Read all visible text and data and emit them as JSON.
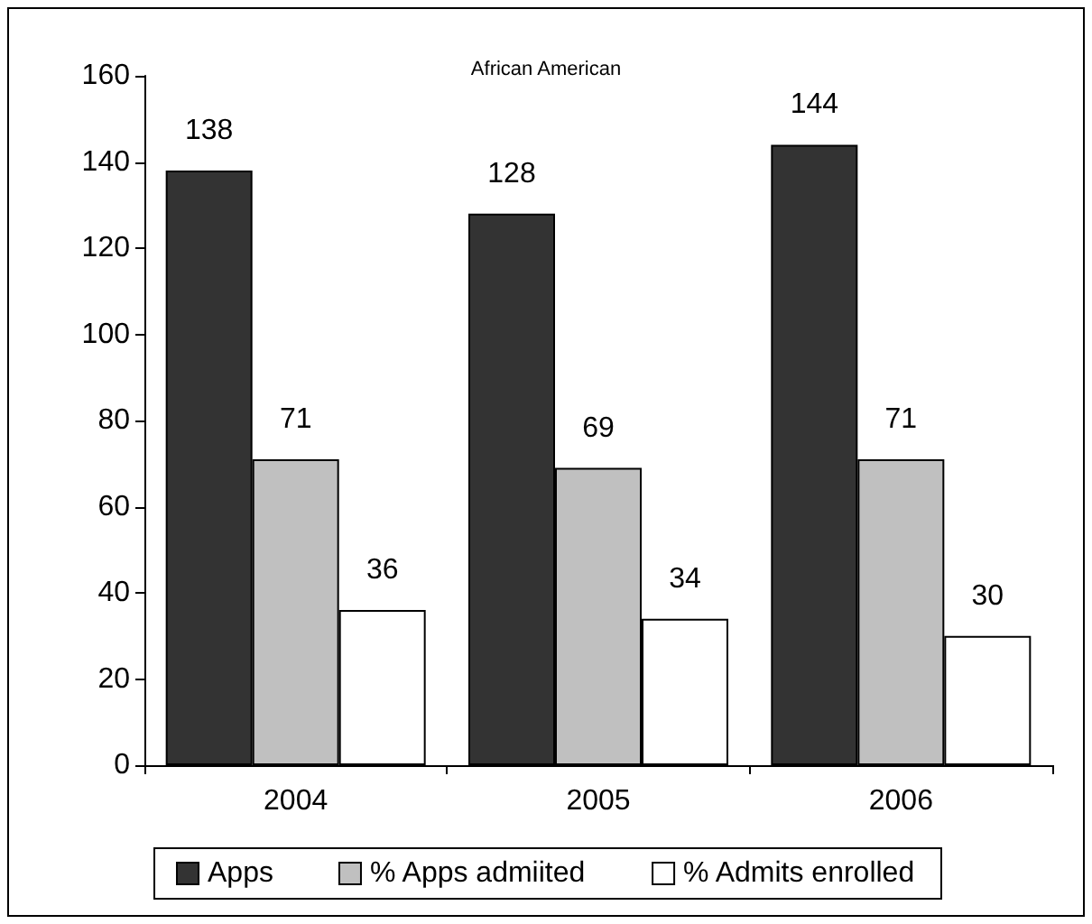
{
  "chart_data": {
    "type": "bar",
    "title": "African American",
    "categories": [
      "2004",
      "2005",
      "2006"
    ],
    "series": [
      {
        "name": "Apps",
        "color": "#333333",
        "values": [
          138,
          128,
          144
        ]
      },
      {
        "name": "% Apps admiited",
        "color": "#c0c0c0",
        "values": [
          71,
          69,
          71
        ]
      },
      {
        "name": "% Admits enrolled",
        "color": "#ffffff",
        "values": [
          36,
          34,
          30
        ]
      }
    ],
    "ylim": [
      0,
      160
    ],
    "yticks": [
      0,
      20,
      40,
      60,
      80,
      100,
      120,
      140,
      160
    ],
    "grid": false,
    "legend": "bottom",
    "data_labels": true
  }
}
